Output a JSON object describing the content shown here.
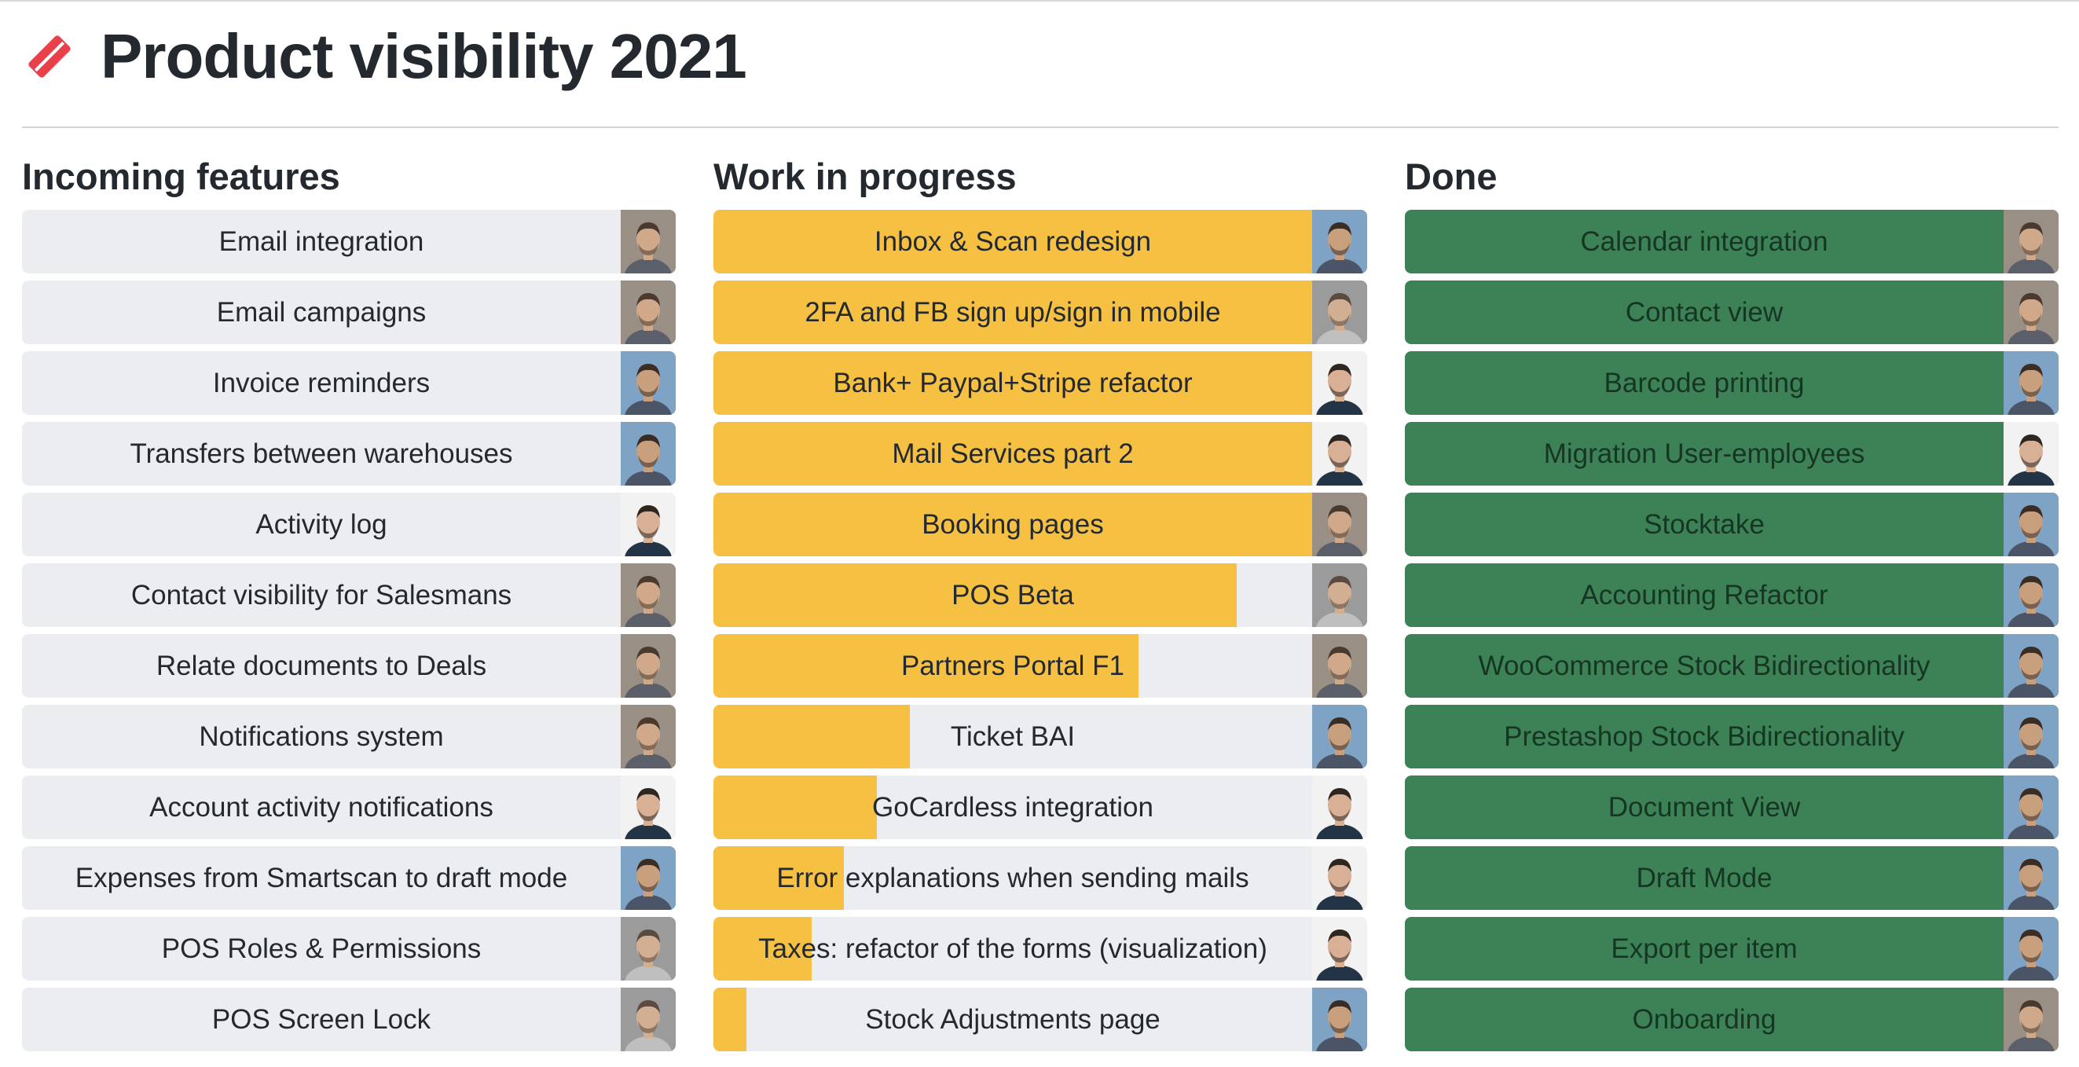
{
  "page": {
    "title": "Product visibility 2021",
    "logo_icon": "red-gem-icon",
    "accent": "#e8414b"
  },
  "colors": {
    "wip": "#f6c142",
    "done": "#3c8256",
    "incoming": "#ebedf0"
  },
  "columns": [
    {
      "title": "Incoming features",
      "items": [
        {
          "label": "Email integration",
          "avatar": "a"
        },
        {
          "label": "Email campaigns",
          "avatar": "a"
        },
        {
          "label": "Invoice reminders",
          "avatar": "b"
        },
        {
          "label": "Transfers between warehouses",
          "avatar": "b"
        },
        {
          "label": "Activity log",
          "avatar": "c"
        },
        {
          "label": "Contact visibility for Salesmans",
          "avatar": "a"
        },
        {
          "label": "Relate documents to Deals",
          "avatar": "a"
        },
        {
          "label": "Notifications system",
          "avatar": "a"
        },
        {
          "label": "Account activity notifications",
          "avatar": "c"
        },
        {
          "label": "Expenses from Smartscan to draft mode",
          "avatar": "b"
        },
        {
          "label": "POS Roles & Permissions",
          "avatar": "d"
        },
        {
          "label": "POS Screen Lock",
          "avatar": "d"
        }
      ]
    },
    {
      "title": "Work in progress",
      "items": [
        {
          "label": "Inbox & Scan redesign",
          "avatar": "b",
          "progress": 1.0
        },
        {
          "label": "2FA and FB sign up/sign in mobile",
          "avatar": "d",
          "progress": 1.0
        },
        {
          "label": "Bank+ Paypal+Stripe refactor",
          "avatar": "c",
          "progress": 1.0
        },
        {
          "label": "Mail Services part 2",
          "avatar": "c",
          "progress": 1.0
        },
        {
          "label": "Booking pages",
          "avatar": "a",
          "progress": 0.98
        },
        {
          "label": "POS Beta",
          "avatar": "d",
          "progress": 0.8
        },
        {
          "label": "Partners Portal F1",
          "avatar": "a",
          "progress": 0.65
        },
        {
          "label": "Ticket BAI",
          "avatar": "b",
          "progress": 0.3
        },
        {
          "label": "GoCardless integration",
          "avatar": "c",
          "progress": 0.25
        },
        {
          "label": "Error explanations when sending mails",
          "avatar": "c",
          "progress": 0.2
        },
        {
          "label": "Taxes: refactor of the forms (visualization)",
          "avatar": "c",
          "progress": 0.15
        },
        {
          "label": "Stock Adjustments page",
          "avatar": "b",
          "progress": 0.05
        }
      ]
    },
    {
      "title": "Done",
      "items": [
        {
          "label": "Calendar integration",
          "avatar": "a"
        },
        {
          "label": "Contact view",
          "avatar": "a"
        },
        {
          "label": "Barcode printing",
          "avatar": "b"
        },
        {
          "label": "Migration User-employees",
          "avatar": "c"
        },
        {
          "label": "Stocktake",
          "avatar": "b"
        },
        {
          "label": "Accounting Refactor",
          "avatar": "b"
        },
        {
          "label": "WooCommerce Stock Bidirectionality",
          "avatar": "b"
        },
        {
          "label": "Prestashop Stock Bidirectionality",
          "avatar": "b"
        },
        {
          "label": "Document View",
          "avatar": "b"
        },
        {
          "label": "Draft Mode",
          "avatar": "b"
        },
        {
          "label": "Export per item",
          "avatar": "b"
        },
        {
          "label": "Onboarding",
          "avatar": "a"
        }
      ]
    }
  ]
}
